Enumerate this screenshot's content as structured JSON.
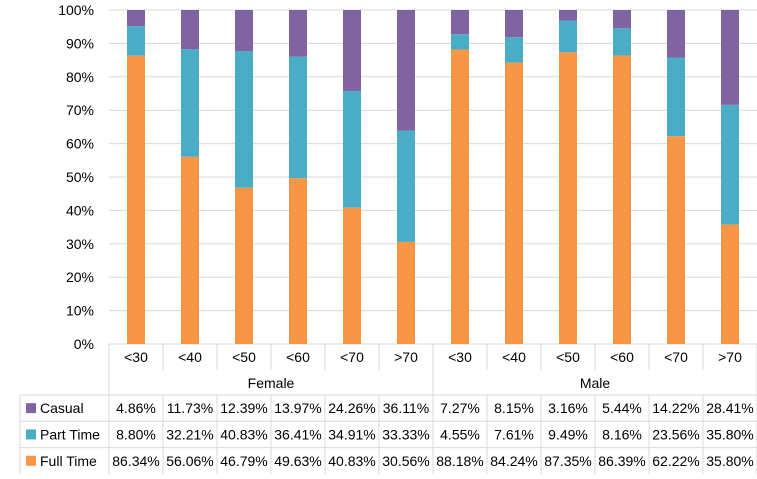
{
  "chart_data": {
    "type": "bar",
    "stacked": "percent",
    "groups": [
      {
        "label": "Female",
        "categories": [
          "<30",
          "<40",
          "<50",
          "<60",
          "<70",
          ">70"
        ]
      },
      {
        "label": "Male",
        "categories": [
          "<30",
          "<40",
          "<50",
          "<60",
          "<70",
          ">70"
        ]
      }
    ],
    "categories": [
      "<30",
      "<40",
      "<50",
      "<60",
      "<70",
      ">70",
      "<30",
      "<40",
      "<50",
      "<60",
      "<70",
      ">70"
    ],
    "ylim": [
      0,
      100
    ],
    "yticks": [
      "0%",
      "10%",
      "20%",
      "30%",
      "40%",
      "50%",
      "60%",
      "70%",
      "80%",
      "90%",
      "100%"
    ],
    "grid": true,
    "legend": "data-table-rows",
    "series": [
      {
        "name": "Full Time",
        "color": "#f79646",
        "values": [
          86.34,
          56.06,
          46.79,
          49.63,
          40.83,
          30.56,
          88.18,
          84.24,
          87.35,
          86.39,
          62.22,
          35.8
        ],
        "labels": [
          "86.34%",
          "56.06%",
          "46.79%",
          "49.63%",
          "40.83%",
          "30.56%",
          "88.18%",
          "84.24%",
          "87.35%",
          "86.39%",
          "62.22%",
          "35.80%"
        ]
      },
      {
        "name": "Part Time",
        "color": "#4bacc6",
        "values": [
          8.8,
          32.21,
          40.83,
          36.41,
          34.91,
          33.33,
          4.55,
          7.61,
          9.49,
          8.16,
          23.56,
          35.8
        ],
        "labels": [
          "8.80%",
          "32.21%",
          "40.83%",
          "36.41%",
          "34.91%",
          "33.33%",
          "4.55%",
          "7.61%",
          "9.49%",
          "8.16%",
          "23.56%",
          "35.80%"
        ]
      },
      {
        "name": "Casual",
        "color": "#8064a2",
        "values": [
          4.86,
          11.73,
          12.39,
          13.97,
          24.26,
          36.11,
          7.27,
          8.15,
          3.16,
          5.44,
          14.22,
          28.41
        ],
        "labels": [
          "4.86%",
          "11.73%",
          "12.39%",
          "13.97%",
          "24.26%",
          "36.11%",
          "7.27%",
          "8.15%",
          "3.16%",
          "5.44%",
          "14.22%",
          "28.41%"
        ]
      }
    ],
    "table_row_order": [
      "Casual",
      "Part Time",
      "Full Time"
    ]
  }
}
